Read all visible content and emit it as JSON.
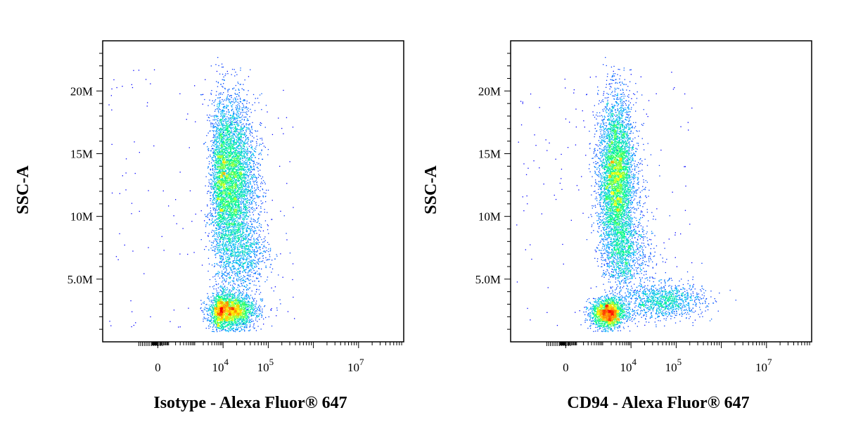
{
  "chart_data": [
    {
      "type": "scatter",
      "subtype": "flow-cytometry-density-dot-plot",
      "xlabel": "Isotype - Alexa Fluor® 647",
      "ylabel": "SSC-A",
      "x_scale": "biexponential",
      "ylim": [
        0,
        24000000
      ],
      "y_ticks": [
        {
          "value": 5000000,
          "label": "5.0M"
        },
        {
          "value": 10000000,
          "label": "10M"
        },
        {
          "value": 15000000,
          "label": "15M"
        },
        {
          "value": 20000000,
          "label": "20M"
        }
      ],
      "x_ticks": [
        {
          "value": 0,
          "base": "0",
          "exp": ""
        },
        {
          "value": 10000,
          "base": "10",
          "exp": "4"
        },
        {
          "value": 100000,
          "base": "10",
          "exp": "5"
        },
        {
          "value": 10000000,
          "base": "10",
          "exp": "7"
        }
      ],
      "populations": [
        {
          "name": "",
          "x_center": 14000,
          "y_center": 13000000,
          "x_spread_log": 0.28,
          "y_spread": 3200000,
          "weight": 0.6
        },
        {
          "name": "",
          "x_center": 13000,
          "y_center": 2500000,
          "x_spread_log": 0.3,
          "y_spread": 700000,
          "weight": 0.3
        },
        {
          "name": "",
          "x_center": 25000,
          "y_center": 7000000,
          "x_spread_log": 0.3,
          "y_spread": 1400000,
          "weight": 0.1
        }
      ],
      "color_scale": [
        "#0000ff",
        "#00b4ff",
        "#00ff80",
        "#ffff00",
        "#ff8000",
        "#ff0000"
      ]
    },
    {
      "type": "scatter",
      "subtype": "flow-cytometry-density-dot-plot",
      "xlabel": "CD94 - Alexa Fluor® 647",
      "ylabel": "SSC-A",
      "x_scale": "biexponential",
      "ylim": [
        0,
        24000000
      ],
      "y_ticks": [
        {
          "value": 5000000,
          "label": "5.0M"
        },
        {
          "value": 10000000,
          "label": "10M"
        },
        {
          "value": 15000000,
          "label": "15M"
        },
        {
          "value": 20000000,
          "label": "20M"
        }
      ],
      "x_ticks": [
        {
          "value": 0,
          "base": "0",
          "exp": ""
        },
        {
          "value": 10000,
          "base": "10",
          "exp": "4"
        },
        {
          "value": 100000,
          "base": "10",
          "exp": "5"
        },
        {
          "value": 10000000,
          "base": "10",
          "exp": "7"
        }
      ],
      "populations": [
        {
          "name": "",
          "x_center": 3000,
          "y_center": 13000000,
          "x_spread_log": 0.32,
          "y_spread": 3200000,
          "weight": 0.55
        },
        {
          "name": "",
          "x_center": 1500,
          "y_center": 2300000,
          "x_spread_log": 0.3,
          "y_spread": 600000,
          "weight": 0.22
        },
        {
          "name": "",
          "x_center": 50000,
          "y_center": 3300000,
          "x_spread_log": 0.45,
          "y_spread": 700000,
          "weight": 0.13
        },
        {
          "name": "",
          "x_center": 6000,
          "y_center": 7000000,
          "x_spread_log": 0.35,
          "y_spread": 1400000,
          "weight": 0.1
        }
      ],
      "color_scale": [
        "#0000ff",
        "#00b4ff",
        "#00ff80",
        "#ffff00",
        "#ff8000",
        "#ff0000"
      ]
    }
  ]
}
